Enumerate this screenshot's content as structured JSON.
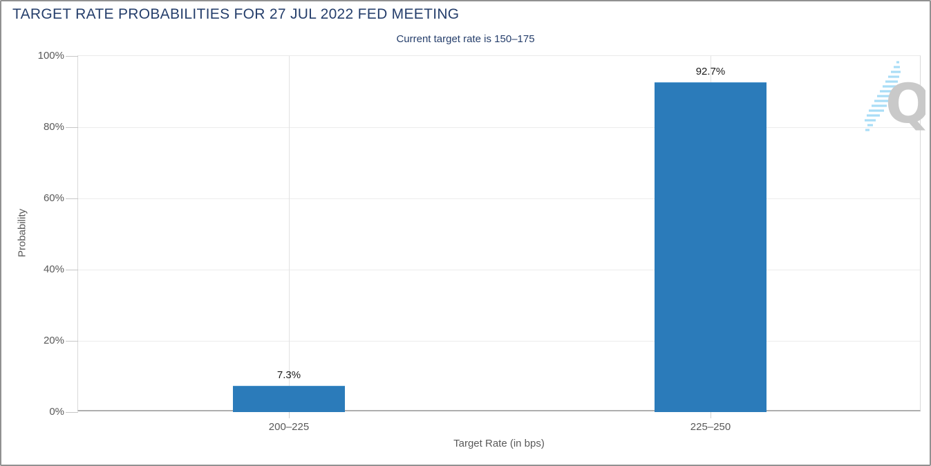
{
  "colors": {
    "bar": "#2b7bba",
    "title_navy": "#253e6b",
    "axis_text_gray": "#595959",
    "data_label": "#1a1a1a",
    "gridline": "#ececec",
    "watermark_gray": "#c9c9c9",
    "watermark_blue": "#a9ddf6"
  },
  "watermark": {
    "letter": "Q"
  },
  "chart_data": {
    "type": "bar",
    "title": "TARGET RATE PROBABILITIES FOR 27 JUL 2022 FED MEETING",
    "subtitle": "Current target rate is 150–175",
    "xlabel": "Target Rate (in bps)",
    "ylabel": "Probability",
    "categories": [
      "200–225",
      "225–250"
    ],
    "values": [
      7.3,
      92.7
    ],
    "value_labels": [
      "7.3%",
      "92.7%"
    ],
    "ylim": [
      0,
      100
    ],
    "yticks": [
      0,
      20,
      40,
      60,
      80,
      100
    ],
    "ytick_labels": [
      "0%",
      "20%",
      "40%",
      "60%",
      "80%",
      "100%"
    ],
    "grid": "horizontal 20% steps + vertical category centers",
    "legend": "none"
  }
}
